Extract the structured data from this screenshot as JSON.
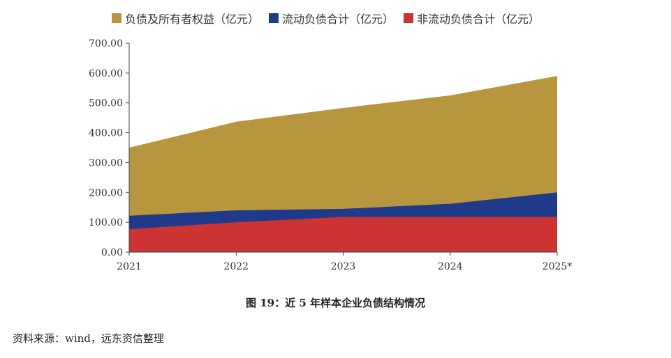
{
  "chart_data": {
    "type": "area",
    "categories": [
      "2021",
      "2022",
      "2023",
      "2024",
      "2025*"
    ],
    "series": [
      {
        "name": "负债及所有者权益（亿元）",
        "values": [
          350,
          437,
          483,
          525,
          590
        ],
        "color": "#b8963e"
      },
      {
        "name": "流动负债合计（亿元）",
        "values": [
          122,
          140,
          145,
          162,
          200
        ],
        "color": "#1f3a8a"
      },
      {
        "name": "非流动负债合计（亿元）",
        "values": [
          77,
          100,
          118,
          118,
          118
        ],
        "color": "#cc3333"
      }
    ],
    "ylim": [
      0,
      700
    ],
    "yticks": [
      "0.00",
      "100.00",
      "200.00",
      "300.00",
      "400.00",
      "500.00",
      "600.00",
      "700.00"
    ],
    "legend_position": "top",
    "grid": false
  },
  "caption": "图 19：近 5 年样本企业负债结构情况",
  "source": "资料来源：wind，远东资信整理"
}
